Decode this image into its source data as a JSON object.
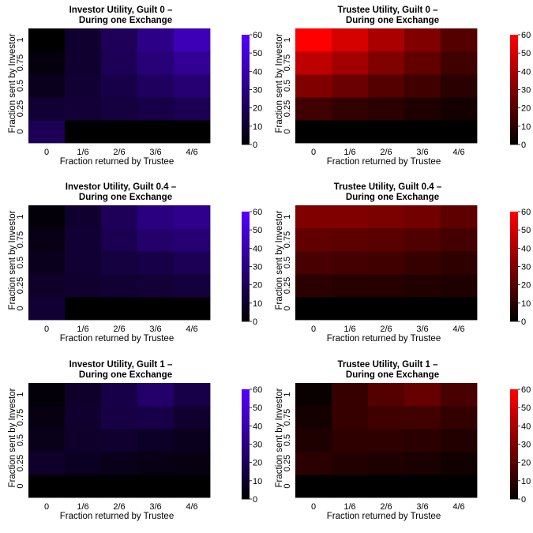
{
  "chart_data": [
    {
      "type": "heatmap",
      "title_line1": "Investor Utility, Guilt 0 –",
      "title_line2": "During one Exchange",
      "xlabel": "Fraction returned by Trustee",
      "ylabel": "Fraction sent by Investor",
      "x_categories": [
        "0",
        "1/6",
        "2/6",
        "3/6",
        "4/6"
      ],
      "y_categories": [
        "0",
        "0.25",
        "0.5",
        "0.75",
        "1"
      ],
      "palette": "blue",
      "colorbar_ticks": [
        "0",
        "10",
        "20",
        "30",
        "40",
        "50",
        "60"
      ],
      "zlim": [
        0,
        60
      ],
      "values": [
        [
          20,
          0,
          0,
          0,
          0
        ],
        [
          12,
          13,
          15,
          17,
          19
        ],
        [
          7,
          12,
          17,
          22,
          27
        ],
        [
          3,
          11,
          20,
          28,
          35
        ],
        [
          0,
          11,
          21,
          32,
          43
        ]
      ]
    },
    {
      "type": "heatmap",
      "title_line1": "Trustee Utility, Guilt 0 –",
      "title_line2": "During one Exchange",
      "xlabel": "Fraction returned by Trustee",
      "ylabel": "Fraction sent by Investor",
      "x_categories": [
        "0",
        "1/6",
        "2/6",
        "3/6",
        "4/6"
      ],
      "y_categories": [
        "0",
        "0.25",
        "0.5",
        "0.75",
        "1"
      ],
      "palette": "red",
      "colorbar_ticks": [
        "0",
        "10",
        "20",
        "30",
        "40",
        "50",
        "60"
      ],
      "zlim": [
        0,
        60
      ],
      "values": [
        [
          0,
          0,
          0,
          0,
          0
        ],
        [
          15,
          12,
          10,
          7,
          5
        ],
        [
          30,
          25,
          20,
          15,
          10
        ],
        [
          45,
          38,
          30,
          23,
          15
        ],
        [
          60,
          50,
          40,
          30,
          20
        ]
      ]
    },
    {
      "type": "heatmap",
      "title_line1": "Investor Utility, Guilt 0.4 –",
      "title_line2": "During one Exchange",
      "xlabel": "Fraction returned by Trustee",
      "ylabel": "Fraction sent by Investor",
      "x_categories": [
        "0",
        "1/6",
        "2/6",
        "3/6",
        "4/6"
      ],
      "y_categories": [
        "0",
        "0.25",
        "0.5",
        "0.75",
        "1"
      ],
      "palette": "blue",
      "colorbar_ticks": [
        "0",
        "10",
        "20",
        "30",
        "40",
        "50",
        "60"
      ],
      "zlim": [
        0,
        60
      ],
      "values": [
        [
          12,
          0,
          0,
          0,
          0
        ],
        [
          10,
          11,
          12,
          13,
          14
        ],
        [
          7,
          12,
          15,
          17,
          20
        ],
        [
          5,
          12,
          19,
          25,
          27
        ],
        [
          2,
          11,
          21,
          30,
          33
        ]
      ]
    },
    {
      "type": "heatmap",
      "title_line1": "Trustee Utility, Guilt 0.4 –",
      "title_line2": "During one Exchange",
      "xlabel": "Fraction returned by Trustee",
      "ylabel": "Fraction sent by Investor",
      "x_categories": [
        "0",
        "1/6",
        "2/6",
        "3/6",
        "4/6"
      ],
      "y_categories": [
        "0",
        "0.25",
        "0.5",
        "0.75",
        "1"
      ],
      "palette": "red",
      "colorbar_ticks": [
        "0",
        "10",
        "20",
        "30",
        "40",
        "50",
        "60"
      ],
      "zlim": [
        0,
        60
      ],
      "values": [
        [
          0,
          0,
          0,
          0,
          0
        ],
        [
          10,
          9,
          9,
          8,
          7
        ],
        [
          17,
          16,
          15,
          13,
          11
        ],
        [
          23,
          22,
          21,
          19,
          16
        ],
        [
          30,
          30,
          29,
          27,
          22
        ]
      ]
    },
    {
      "type": "heatmap",
      "title_line1": "Investor Utility, Guilt 1 –",
      "title_line2": "During one Exchange",
      "xlabel": "Fraction returned by Trustee",
      "ylabel": "Fraction sent by Investor",
      "x_categories": [
        "0",
        "1/6",
        "2/6",
        "3/6",
        "4/6"
      ],
      "y_categories": [
        "0",
        "0.25",
        "0.5",
        "0.75",
        "1"
      ],
      "palette": "blue",
      "colorbar_ticks": [
        "0",
        "10",
        "20",
        "30",
        "40",
        "50",
        "60"
      ],
      "zlim": [
        0,
        60
      ],
      "values": [
        [
          0,
          0,
          0,
          0,
          0
        ],
        [
          10,
          8,
          6,
          5,
          4
        ],
        [
          6,
          10,
          11,
          9,
          7
        ],
        [
          4,
          11,
          16,
          17,
          11
        ],
        [
          2,
          10,
          17,
          25,
          17
        ]
      ]
    },
    {
      "type": "heatmap",
      "title_line1": "Trustee Utility, Guilt 1 –",
      "title_line2": "During one Exchange",
      "xlabel": "Fraction returned by Trustee",
      "ylabel": "Fraction sent by Investor",
      "x_categories": [
        "0",
        "1/6",
        "2/6",
        "3/6",
        "4/6"
      ],
      "y_categories": [
        "0",
        "0.25",
        "0.5",
        "0.75",
        "1"
      ],
      "palette": "red",
      "colorbar_ticks": [
        "0",
        "10",
        "20",
        "30",
        "40",
        "50",
        "60"
      ],
      "zlim": [
        0,
        60
      ],
      "values": [
        [
          0,
          0,
          0,
          0,
          0
        ],
        [
          10,
          8,
          7,
          6,
          4
        ],
        [
          7,
          11,
          11,
          10,
          8
        ],
        [
          5,
          13,
          15,
          15,
          12
        ],
        [
          2,
          13,
          20,
          24,
          17
        ]
      ]
    }
  ]
}
